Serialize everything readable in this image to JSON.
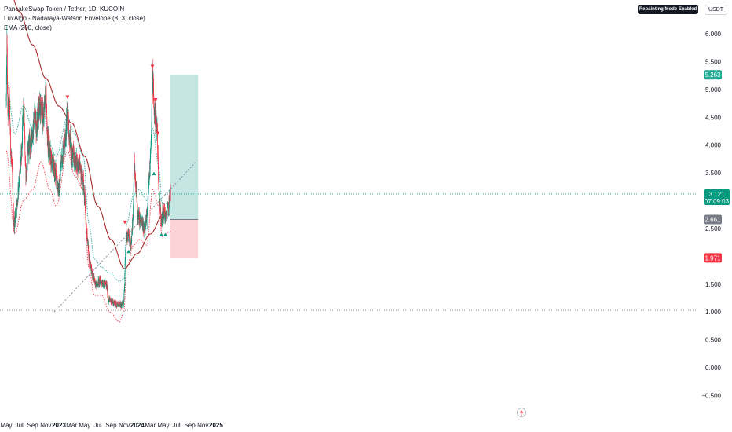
{
  "legend": {
    "title": "PancakeSwap Token / Tether, 1D, KUCOIN",
    "indicator1": "LuxAlgo - Nadaraya-Watson Envelope (8, 3, close)",
    "indicator2": "EMA (200, close)"
  },
  "badges": {
    "repainting": "Repainting Mode Enabled",
    "currency": "USDT"
  },
  "colors": {
    "ema": "#a52a2a",
    "upper_envelope": "#26a69a",
    "lower_envelope": "#f23645",
    "candle_up": "#089981",
    "candle_down": "#f23645",
    "target_zone": "#b2dfdb",
    "stop_zone": "#fbcdd0",
    "trendline": "#7f8c9a"
  },
  "chart_data": {
    "type": "candlestick",
    "symbol": "PancakeSwap Token / Tether",
    "timeframe": "1D",
    "exchange": "KUCOIN",
    "y_axis_ticks": [
      "6.000",
      "5.500",
      "5.000",
      "4.500",
      "4.000",
      "3.500",
      "3.000",
      "2.500",
      "2.000",
      "1.500",
      "1.000",
      "0.500",
      "0.000",
      "−0.500"
    ],
    "ylim": [
      -0.6,
      6.4
    ],
    "x_axis_ticks": [
      "May",
      "Jul",
      "Sep",
      "Nov",
      "2023",
      "Mar",
      "May",
      "Jul",
      "Sep",
      "Nov",
      "2024",
      "Mar",
      "May",
      "Jul",
      "Sep",
      "Nov",
      "2025"
    ],
    "x_axis_bold": [
      "2023",
      "2024",
      "2025"
    ],
    "price_labels": {
      "target": "5.263",
      "current": "3.121",
      "countdown": "07:09:03",
      "entry": "2.661",
      "stop": "1.971"
    },
    "price_levels": {
      "target": 5.263,
      "current": 3.121,
      "entry": 2.661,
      "stop": 1.971,
      "support": 1.03
    },
    "position": {
      "start": "2024-05-31",
      "end": "2024-10-10",
      "entry": 2.661,
      "target": 5.263,
      "stop": 1.971
    },
    "trendline": {
      "from": [
        "2022-12-10",
        1.0
      ],
      "to": [
        "2024-10-01",
        3.7
      ]
    },
    "price_anchors": [
      [
        "2022-05-01",
        4.8
      ],
      [
        "2022-05-04",
        5.8
      ],
      [
        "2022-05-08",
        4.6
      ],
      [
        "2022-05-14",
        4.8
      ],
      [
        "2022-05-24",
        3.8
      ],
      [
        "2022-06-06",
        2.6
      ],
      [
        "2022-06-18",
        2.9
      ],
      [
        "2022-07-01",
        3.4
      ],
      [
        "2022-07-10",
        3.8
      ],
      [
        "2022-07-20",
        4.6
      ],
      [
        "2022-08-01",
        3.5
      ],
      [
        "2022-08-15",
        4.0
      ],
      [
        "2022-09-01",
        4.2
      ],
      [
        "2022-09-10",
        4.6
      ],
      [
        "2022-09-20",
        4.3
      ],
      [
        "2022-10-01",
        4.7
      ],
      [
        "2022-10-20",
        4.5
      ],
      [
        "2022-11-02",
        4.9
      ],
      [
        "2022-11-08",
        4.2
      ],
      [
        "2022-11-15",
        3.9
      ],
      [
        "2022-12-01",
        3.7
      ],
      [
        "2022-12-15",
        3.5
      ],
      [
        "2023-01-01",
        3.2
      ],
      [
        "2023-01-15",
        3.8
      ],
      [
        "2023-02-01",
        4.2
      ],
      [
        "2023-02-10",
        4.6
      ],
      [
        "2023-02-20",
        4.1
      ],
      [
        "2023-03-05",
        3.8
      ],
      [
        "2023-03-20",
        3.7
      ],
      [
        "2023-04-05",
        3.6
      ],
      [
        "2023-04-20",
        3.4
      ],
      [
        "2023-05-01",
        3.1
      ],
      [
        "2023-05-10",
        2.4
      ],
      [
        "2023-05-25",
        1.9
      ],
      [
        "2023-06-10",
        1.6
      ],
      [
        "2023-06-25",
        1.5
      ],
      [
        "2023-07-10",
        1.55
      ],
      [
        "2023-07-25",
        1.52
      ],
      [
        "2023-08-10",
        1.48
      ],
      [
        "2023-08-20",
        1.22
      ],
      [
        "2023-09-05",
        1.18
      ],
      [
        "2023-09-20",
        1.15
      ],
      [
        "2023-10-05",
        1.12
      ],
      [
        "2023-10-20",
        1.12
      ],
      [
        "2023-10-28",
        1.15
      ],
      [
        "2023-11-02",
        1.45
      ],
      [
        "2023-11-06",
        2.0
      ],
      [
        "2023-11-10",
        2.3
      ],
      [
        "2023-11-20",
        2.35
      ],
      [
        "2023-12-01",
        2.2
      ],
      [
        "2023-12-10",
        2.6
      ],
      [
        "2023-12-18",
        3.6
      ],
      [
        "2023-12-25",
        3.2
      ],
      [
        "2024-01-05",
        2.7
      ],
      [
        "2024-01-20",
        2.6
      ],
      [
        "2024-02-01",
        2.5
      ],
      [
        "2024-02-15",
        2.7
      ],
      [
        "2024-02-25",
        3.4
      ],
      [
        "2024-03-05",
        4.1
      ],
      [
        "2024-03-12",
        5.2
      ],
      [
        "2024-03-20",
        4.6
      ],
      [
        "2024-04-01",
        4.3
      ],
      [
        "2024-04-12",
        3.1
      ],
      [
        "2024-04-20",
        2.7
      ],
      [
        "2024-05-01",
        2.8
      ],
      [
        "2024-05-15",
        2.7
      ],
      [
        "2024-05-25",
        2.9
      ],
      [
        "2024-06-01",
        3.05
      ],
      [
        "2024-06-04",
        3.12
      ]
    ],
    "ema_anchors": [
      [
        "2022-05-01",
        7.0
      ],
      [
        "2022-07-01",
        6.4
      ],
      [
        "2022-09-01",
        5.8
      ],
      [
        "2022-11-01",
        5.2
      ],
      [
        "2023-01-01",
        4.7
      ],
      [
        "2023-03-01",
        4.4
      ],
      [
        "2023-05-01",
        3.8
      ],
      [
        "2023-07-01",
        2.9
      ],
      [
        "2023-09-01",
        2.3
      ],
      [
        "2023-11-01",
        1.78
      ],
      [
        "2024-01-01",
        2.05
      ],
      [
        "2024-03-01",
        2.4
      ],
      [
        "2024-05-01",
        2.75
      ],
      [
        "2024-06-04",
        2.76
      ]
    ],
    "upper_env_anchors": [
      [
        "2022-05-01",
        5.2
      ],
      [
        "2022-06-10",
        4.2
      ],
      [
        "2022-07-20",
        4.7
      ],
      [
        "2022-09-01",
        4.3
      ],
      [
        "2022-10-10",
        4.9
      ],
      [
        "2022-11-20",
        4.0
      ],
      [
        "2022-12-20",
        3.8
      ],
      [
        "2023-02-10",
        4.5
      ],
      [
        "2023-03-15",
        4.2
      ],
      [
        "2023-04-25",
        3.8
      ],
      [
        "2023-05-20",
        2.6
      ],
      [
        "2023-06-15",
        1.95
      ],
      [
        "2023-07-20",
        1.8
      ],
      [
        "2023-08-25",
        1.7
      ],
      [
        "2023-10-10",
        1.55
      ],
      [
        "2023-11-01",
        1.6
      ],
      [
        "2023-11-12",
        2.6
      ],
      [
        "2023-12-15",
        3.1
      ],
      [
        "2024-01-10",
        3.2
      ],
      [
        "2024-02-15",
        3.0
      ],
      [
        "2024-03-12",
        4.3
      ],
      [
        "2024-04-10",
        3.6
      ],
      [
        "2024-04-25",
        2.95
      ],
      [
        "2024-06-04",
        2.95
      ]
    ],
    "lower_env_anchors": [
      [
        "2022-05-01",
        3.9
      ],
      [
        "2022-06-10",
        2.4
      ],
      [
        "2022-07-20",
        3.0
      ],
      [
        "2022-09-01",
        3.2
      ],
      [
        "2022-10-10",
        3.7
      ],
      [
        "2022-11-20",
        3.2
      ],
      [
        "2022-12-20",
        2.9
      ],
      [
        "2023-02-10",
        3.9
      ],
      [
        "2023-03-15",
        3.45
      ],
      [
        "2023-04-25",
        3.2
      ],
      [
        "2023-05-20",
        1.8
      ],
      [
        "2023-06-15",
        1.3
      ],
      [
        "2023-07-20",
        1.3
      ],
      [
        "2023-08-25",
        1.0
      ],
      [
        "2023-10-10",
        0.82
      ],
      [
        "2023-10-30",
        1.0
      ],
      [
        "2023-11-12",
        1.8
      ],
      [
        "2023-12-15",
        2.2
      ],
      [
        "2024-01-10",
        2.3
      ],
      [
        "2024-02-15",
        2.2
      ],
      [
        "2024-03-12",
        3.2
      ],
      [
        "2024-04-10",
        2.9
      ],
      [
        "2024-04-25",
        2.35
      ],
      [
        "2024-06-04",
        2.45
      ]
    ],
    "sell_signals": [
      [
        "2023-02-10",
        4.85
      ],
      [
        "2023-11-04",
        2.6
      ],
      [
        "2024-03-11",
        5.4
      ],
      [
        "2024-03-26",
        4.8
      ],
      [
        "2024-04-05",
        4.2
      ]
    ],
    "buy_signals": [
      [
        "2023-11-22",
        2.1
      ],
      [
        "2024-03-18",
        3.5
      ],
      [
        "2024-04-22",
        2.4
      ],
      [
        "2024-05-10",
        2.4
      ]
    ],
    "title": "PancakeSwap Token / Tether, 1D, KUCOIN",
    "grid": false
  }
}
